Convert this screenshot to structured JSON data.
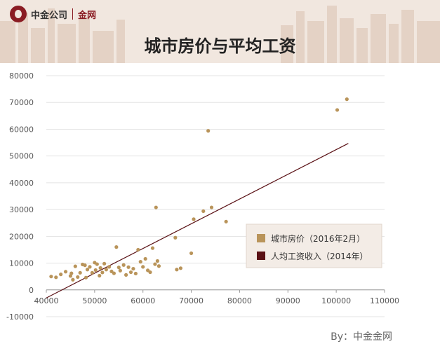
{
  "header": {
    "brand_name": "中金公司",
    "brand_sub": "金网",
    "title": "城市房价与平均工资",
    "logo_icon": "company-logo-icon"
  },
  "footer": {
    "credit": "By：中金金网"
  },
  "colors": {
    "header_bg": "#f1e7df",
    "scatter": "#b9945a",
    "trend": "#5a1115",
    "legend_bg": "#f3ece6"
  },
  "chart_data": {
    "type": "scatter",
    "title": "城市房价与平均工资",
    "xlim": [
      40000,
      110000
    ],
    "ylim": [
      -10000,
      80000
    ],
    "x_ticks": [
      40000,
      50000,
      60000,
      70000,
      80000,
      90000,
      100000,
      110000
    ],
    "y_ticks": [
      -10000,
      0,
      10000,
      20000,
      30000,
      40000,
      50000,
      60000,
      70000,
      80000
    ],
    "grid": "horizontal",
    "legend_position": "right",
    "series": [
      {
        "name": "城市房价（2016年2月）",
        "type": "scatter",
        "points": [
          [
            41000,
            5000
          ],
          [
            42000,
            4700
          ],
          [
            43000,
            5800
          ],
          [
            44000,
            6800
          ],
          [
            45000,
            5200
          ],
          [
            45200,
            6200
          ],
          [
            45500,
            3800
          ],
          [
            46000,
            8800
          ],
          [
            46500,
            4800
          ],
          [
            47000,
            6400
          ],
          [
            47500,
            9500
          ],
          [
            48000,
            9200
          ],
          [
            48200,
            4600
          ],
          [
            48500,
            7600
          ],
          [
            49000,
            8600
          ],
          [
            49500,
            6400
          ],
          [
            50000,
            10200
          ],
          [
            50200,
            7400
          ],
          [
            50500,
            9600
          ],
          [
            51000,
            5300
          ],
          [
            51200,
            8200
          ],
          [
            51600,
            6500
          ],
          [
            52000,
            9800
          ],
          [
            52400,
            7600
          ],
          [
            53000,
            8600
          ],
          [
            53500,
            6900
          ],
          [
            54000,
            6200
          ],
          [
            54500,
            16000
          ],
          [
            55000,
            8400
          ],
          [
            55300,
            7200
          ],
          [
            56000,
            9300
          ],
          [
            56500,
            5600
          ],
          [
            57000,
            8500
          ],
          [
            57500,
            6600
          ],
          [
            58000,
            7900
          ],
          [
            58500,
            6100
          ],
          [
            59000,
            15000
          ],
          [
            59500,
            10500
          ],
          [
            60000,
            8600
          ],
          [
            60500,
            11600
          ],
          [
            61000,
            7300
          ],
          [
            61500,
            6600
          ],
          [
            62000,
            15600
          ],
          [
            62500,
            9600
          ],
          [
            62700,
            30800
          ],
          [
            63000,
            10800
          ],
          [
            63300,
            8900
          ],
          [
            66700,
            19500
          ],
          [
            67000,
            7600
          ],
          [
            67800,
            8100
          ],
          [
            70000,
            13700
          ],
          [
            70500,
            26400
          ],
          [
            72500,
            29400
          ],
          [
            73500,
            59400
          ],
          [
            74200,
            30800
          ],
          [
            77200,
            25500
          ],
          [
            100200,
            67200
          ],
          [
            102200,
            71200
          ]
        ]
      },
      {
        "name": "人均工资收入（2014年）",
        "type": "line",
        "points": [
          [
            40000,
            -3000
          ],
          [
            102500,
            54700
          ]
        ]
      }
    ]
  }
}
